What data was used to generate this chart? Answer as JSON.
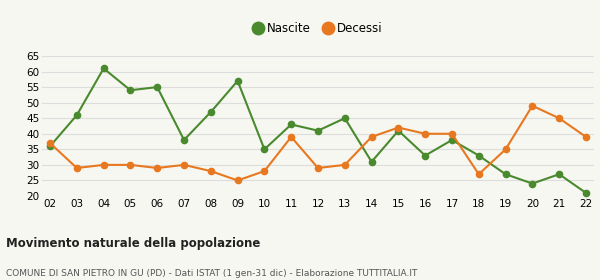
{
  "years": [
    "02",
    "03",
    "04",
    "05",
    "06",
    "07",
    "08",
    "09",
    "10",
    "11",
    "12",
    "13",
    "14",
    "15",
    "16",
    "17",
    "18",
    "19",
    "20",
    "21",
    "22"
  ],
  "nascite": [
    36,
    46,
    61,
    54,
    55,
    38,
    47,
    57,
    35,
    43,
    41,
    45,
    31,
    41,
    33,
    38,
    33,
    27,
    24,
    27,
    21
  ],
  "decessi": [
    37,
    29,
    30,
    30,
    29,
    30,
    28,
    25,
    28,
    39,
    29,
    30,
    39,
    42,
    40,
    40,
    27,
    35,
    49,
    45,
    39
  ],
  "nascite_color": "#4a8a2e",
  "decessi_color": "#e87820",
  "background_color": "#f7f7f2",
  "grid_color": "#dddddd",
  "ylim": [
    20,
    65
  ],
  "yticks": [
    20,
    25,
    30,
    35,
    40,
    45,
    50,
    55,
    60,
    65
  ],
  "title": "Movimento naturale della popolazione",
  "subtitle": "COMUNE DI SAN PIETRO IN GU (PD) - Dati ISTAT (1 gen-31 dic) - Elaborazione TUTTITALIA.IT",
  "legend_nascite": "Nascite",
  "legend_decessi": "Decessi",
  "marker_size": 4.5,
  "line_width": 1.5
}
